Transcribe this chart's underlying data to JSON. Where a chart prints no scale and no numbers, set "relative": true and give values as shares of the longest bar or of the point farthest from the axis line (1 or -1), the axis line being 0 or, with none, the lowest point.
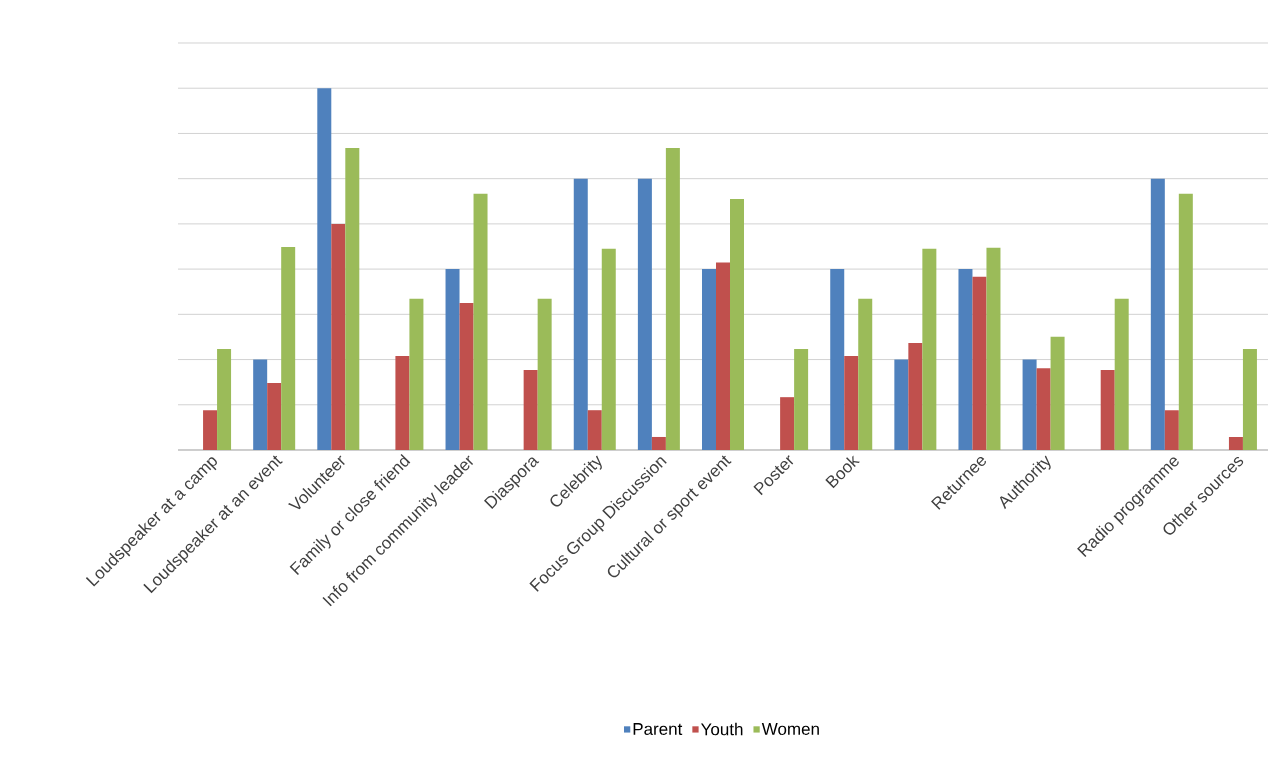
{
  "chart_data": {
    "type": "bar",
    "relative": true,
    "grid": "y",
    "legend": "bottom",
    "categories": [
      "Loudspeaker at a camp",
      "Loudspeaker at an event",
      "Volunteer",
      "Family or close friend",
      "Info from community leader",
      "Diaspora",
      "Celebrity",
      "Focus Group Discussion",
      "Cultural or sport event",
      "Poster",
      "Book",
      null,
      "Returnee",
      "Authority",
      null,
      "Radio programme",
      "Other sources"
    ],
    "series": [
      {
        "name": "Parent",
        "color": "#4f81bd",
        "values": [
          0,
          0.25,
          1,
          0,
          0.5,
          0,
          0.75,
          0.75,
          0.5,
          0,
          0.5,
          0.25,
          0.5,
          0.25,
          0,
          0.75,
          0
        ]
      },
      {
        "name": "Youth",
        "color": "#c0504d",
        "values": [
          0.11,
          0.185,
          0.625,
          0.26,
          0.406,
          0.221,
          0.11,
          0.036,
          0.518,
          0.146,
          0.26,
          0.296,
          0.479,
          0.226,
          0.221,
          0.11,
          0.036
        ]
      },
      {
        "name": "Women",
        "color": "#9bbb59",
        "values": [
          0.279,
          0.561,
          0.835,
          0.418,
          0.708,
          0.418,
          0.556,
          0.835,
          0.694,
          0.279,
          0.418,
          0.556,
          0.559,
          0.313,
          0.418,
          0.708,
          0.279
        ]
      }
    ]
  }
}
